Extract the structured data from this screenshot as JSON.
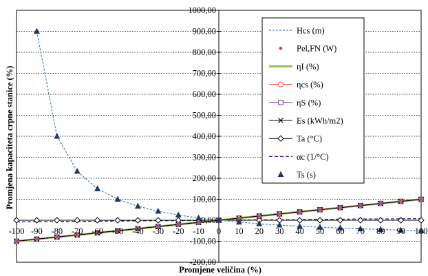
{
  "chart_data": {
    "type": "line",
    "xlabel": "Promjene veličina (%)",
    "ylabel": "Promjena kapaciteta crpne stanice (%)",
    "xlim": [
      -100,
      100
    ],
    "ylim": [
      -200,
      1000
    ],
    "x_ticks": [
      "-100",
      "-90",
      "-80",
      "-70",
      "-60",
      "-50",
      "-40",
      "-30",
      "-20",
      "-10",
      "0",
      "10",
      "20",
      "30",
      "40",
      "50",
      "60",
      "70",
      "80",
      "90",
      "100"
    ],
    "y_ticks": [
      "-200,00",
      "-100,00",
      "0,00",
      "100,00",
      "200,00",
      "300,00",
      "400,00",
      "500,00",
      "600,00",
      "700,00",
      "800,00",
      "900,00",
      "1000,00"
    ],
    "grid": "horizontal",
    "legend_position": "top-right",
    "x": [
      -100,
      -90,
      -80,
      -70,
      -60,
      -50,
      -40,
      -30,
      -20,
      -10,
      0,
      10,
      20,
      30,
      40,
      50,
      60,
      70,
      80,
      90,
      100
    ],
    "series": [
      {
        "name": "Hcs (m)",
        "color": "#4f81bd",
        "values": [
          null,
          900,
          400,
          233,
          150,
          100,
          67,
          43,
          25,
          11,
          0,
          -9,
          -17,
          -23,
          -29,
          -33,
          -37,
          -41,
          -44,
          -47,
          -50
        ]
      },
      {
        "name": "Pel,FN (W)",
        "color": "#c0504d",
        "values": [
          -100,
          -90,
          -80,
          -70,
          -60,
          -50,
          -40,
          -30,
          -20,
          -10,
          0,
          10,
          20,
          30,
          40,
          50,
          60,
          70,
          80,
          90,
          100
        ]
      },
      {
        "name": "ηI (%)",
        "color": "#9bbb59",
        "values": [
          -100,
          -90,
          -80,
          -70,
          -60,
          -50,
          -40,
          -30,
          -20,
          -10,
          0,
          10,
          20,
          30,
          40,
          50,
          60,
          70,
          80,
          90,
          100
        ]
      },
      {
        "name": "ηcs (%)",
        "color": "#ff4040",
        "values": [
          -100,
          -90,
          -80,
          -70,
          -60,
          -50,
          -40,
          -30,
          -20,
          -10,
          0,
          10,
          20,
          30,
          40,
          50,
          60,
          70,
          80,
          90,
          100
        ]
      },
      {
        "name": "ηS (%)",
        "color": "#7030a0",
        "values": [
          -100,
          -90,
          -80,
          -70,
          -60,
          -50,
          -40,
          -30,
          -20,
          -10,
          0,
          10,
          20,
          30,
          40,
          50,
          60,
          70,
          80,
          90,
          100
        ]
      },
      {
        "name": "Es (kWh/m2)",
        "color": "#000000",
        "values": [
          -100,
          -90,
          -80,
          -70,
          -60,
          -50,
          -40,
          -30,
          -20,
          -10,
          0,
          10,
          20,
          30,
          40,
          50,
          60,
          70,
          80,
          90,
          100
        ]
      },
      {
        "name": "Ta (°C)",
        "color": "#000000",
        "values": [
          0,
          0,
          0,
          0,
          0,
          0,
          0,
          0,
          0,
          0,
          0,
          0,
          0,
          0,
          0,
          0,
          0,
          0,
          0,
          0,
          0
        ]
      },
      {
        "name": "αc (1/°C)",
        "color": "#1f1f8f",
        "values": [
          -8,
          -7,
          -6,
          -6,
          -5,
          -4,
          -3,
          -2,
          -2,
          -1,
          0,
          1,
          2,
          2,
          3,
          4,
          5,
          6,
          6,
          7,
          8
        ]
      },
      {
        "name": "Ts (s)",
        "color": "#1f3864",
        "values": [
          null,
          900,
          400,
          233,
          150,
          100,
          67,
          43,
          25,
          11,
          0,
          -9,
          -17,
          -23,
          -29,
          -33,
          -37,
          -41,
          -44,
          -47,
          -50
        ]
      }
    ]
  }
}
